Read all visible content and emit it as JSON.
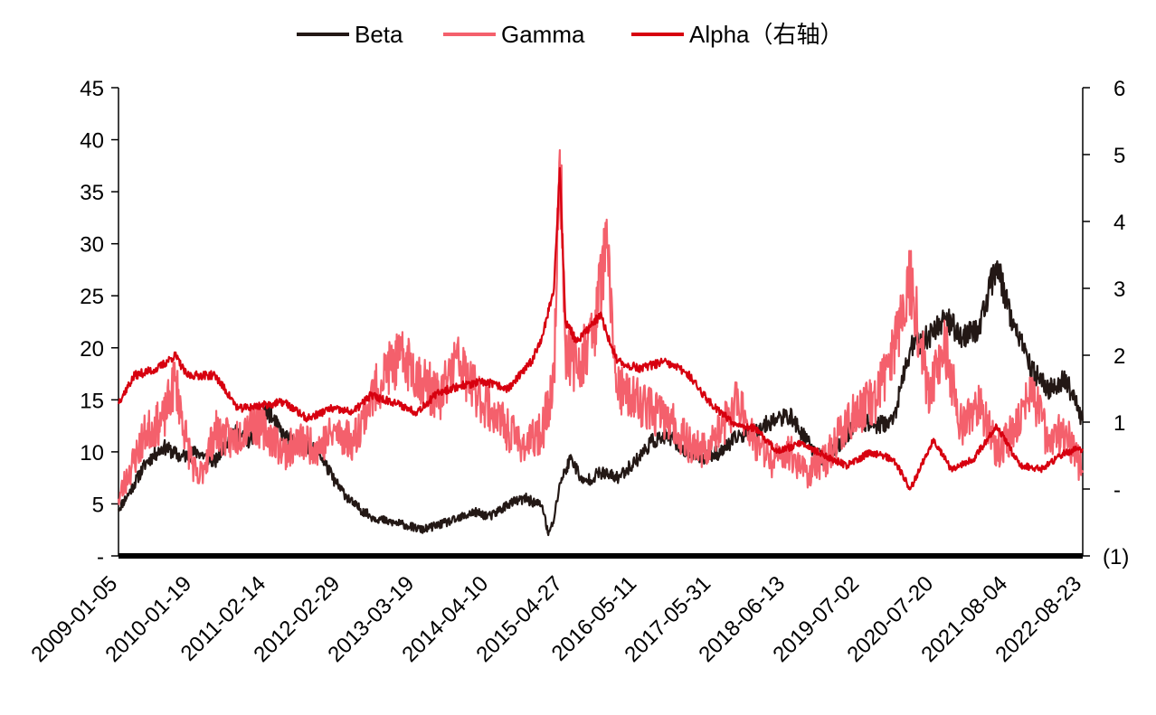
{
  "chart_data": {
    "type": "line",
    "legend": {
      "placement": "top-center",
      "entries": [
        "Beta",
        "Gamma",
        "Alpha（右轴）"
      ]
    },
    "left_axis": {
      "range": [
        0,
        45
      ],
      "ticks": [
        0,
        5,
        10,
        15,
        20,
        25,
        30,
        35,
        40,
        45
      ],
      "tick_labels": [
        "-",
        "5",
        "10",
        "15",
        "20",
        "25",
        "30",
        "35",
        "40",
        "45"
      ]
    },
    "right_axis": {
      "range": [
        -1,
        6
      ],
      "ticks": [
        -1,
        0,
        1,
        2,
        3,
        4,
        5,
        6
      ],
      "tick_labels": [
        "(1)",
        "-",
        "1",
        "2",
        "3",
        "4",
        "5",
        "6"
      ]
    },
    "x_tick_labels": [
      "2009-01-05",
      "2010-01-19",
      "2011-02-14",
      "2012-02-29",
      "2013-03-19",
      "2014-04-10",
      "2015-04-27",
      "2016-05-11",
      "2017-05-31",
      "2018-06-13",
      "2019-07-02",
      "2020-07-20",
      "2021-08-04",
      "2022-08-23"
    ],
    "x_range": [
      "2009-01-05",
      "2022-12-31"
    ],
    "grid": false,
    "series": [
      {
        "name": "Beta",
        "axis": "left",
        "color": "#231815",
        "points": [
          [
            "2009-01-05",
            4.5
          ],
          [
            "2009-03-01",
            6
          ],
          [
            "2009-06-01",
            9
          ],
          [
            "2009-09-01",
            10.5
          ],
          [
            "2009-12-01",
            9.5
          ],
          [
            "2010-03-01",
            10
          ],
          [
            "2010-06-01",
            9
          ],
          [
            "2010-09-01",
            12
          ],
          [
            "2010-12-01",
            11
          ],
          [
            "2011-03-01",
            14
          ],
          [
            "2011-06-01",
            11.5
          ],
          [
            "2011-09-01",
            10.5
          ],
          [
            "2011-12-01",
            10
          ],
          [
            "2012-03-01",
            7
          ],
          [
            "2012-06-01",
            5
          ],
          [
            "2012-09-01",
            3.8
          ],
          [
            "2012-12-01",
            3.3
          ],
          [
            "2013-03-01",
            3
          ],
          [
            "2013-06-01",
            2.5
          ],
          [
            "2013-09-01",
            3
          ],
          [
            "2013-12-01",
            3.5
          ],
          [
            "2014-03-01",
            4.2
          ],
          [
            "2014-06-01",
            3.8
          ],
          [
            "2014-09-01",
            5
          ],
          [
            "2014-12-01",
            5.5
          ],
          [
            "2015-03-01",
            4.8
          ],
          [
            "2015-04-01",
            2
          ],
          [
            "2015-05-01",
            3.5
          ],
          [
            "2015-06-01",
            7
          ],
          [
            "2015-08-01",
            9.5
          ],
          [
            "2015-10-01",
            7
          ],
          [
            "2016-01-01",
            8
          ],
          [
            "2016-04-01",
            7.5
          ],
          [
            "2016-07-01",
            9
          ],
          [
            "2016-10-01",
            11
          ],
          [
            "2017-01-01",
            11.5
          ],
          [
            "2017-04-01",
            10
          ],
          [
            "2017-07-01",
            9.5
          ],
          [
            "2017-10-01",
            10
          ],
          [
            "2018-01-01",
            11.5
          ],
          [
            "2018-04-01",
            12
          ],
          [
            "2018-07-01",
            13
          ],
          [
            "2018-10-01",
            13.5
          ],
          [
            "2019-01-01",
            11
          ],
          [
            "2019-04-01",
            9
          ],
          [
            "2019-07-01",
            11
          ],
          [
            "2019-10-01",
            13
          ],
          [
            "2020-01-01",
            12.5
          ],
          [
            "2020-04-01",
            13
          ],
          [
            "2020-07-01",
            20
          ],
          [
            "2020-10-01",
            21
          ],
          [
            "2021-01-01",
            23
          ],
          [
            "2021-04-01",
            21
          ],
          [
            "2021-07-01",
            22
          ],
          [
            "2021-10-01",
            28
          ],
          [
            "2022-01-01",
            22
          ],
          [
            "2022-04-01",
            18
          ],
          [
            "2022-07-01",
            16
          ],
          [
            "2022-10-01",
            17
          ],
          [
            "2022-12-31",
            13
          ]
        ]
      },
      {
        "name": "Gamma",
        "axis": "left",
        "color": "#F4606C",
        "points": [
          [
            "2009-01-05",
            5.5
          ],
          [
            "2009-03-01",
            8
          ],
          [
            "2009-06-01",
            12
          ],
          [
            "2009-09-01",
            13
          ],
          [
            "2009-11-01",
            17
          ],
          [
            "2010-01-01",
            11
          ],
          [
            "2010-03-01",
            7
          ],
          [
            "2010-06-01",
            12
          ],
          [
            "2010-09-01",
            11
          ],
          [
            "2010-12-01",
            13
          ],
          [
            "2011-03-01",
            12
          ],
          [
            "2011-06-01",
            10
          ],
          [
            "2011-09-01",
            11
          ],
          [
            "2011-12-01",
            10.5
          ],
          [
            "2012-03-01",
            12
          ],
          [
            "2012-06-01",
            11
          ],
          [
            "2012-09-01",
            15
          ],
          [
            "2012-12-01",
            18
          ],
          [
            "2013-03-01",
            19
          ],
          [
            "2013-06-01",
            17
          ],
          [
            "2013-09-01",
            15
          ],
          [
            "2013-12-01",
            19
          ],
          [
            "2014-03-01",
            16
          ],
          [
            "2014-06-01",
            14
          ],
          [
            "2014-09-01",
            12
          ],
          [
            "2014-12-01",
            10.5
          ],
          [
            "2015-03-01",
            12
          ],
          [
            "2015-05-01",
            17
          ],
          [
            "2015-06-01",
            39
          ],
          [
            "2015-07-01",
            20
          ],
          [
            "2015-09-01",
            18
          ],
          [
            "2015-12-01",
            22
          ],
          [
            "2016-02-01",
            30
          ],
          [
            "2016-04-01",
            16
          ],
          [
            "2016-07-01",
            15
          ],
          [
            "2016-10-01",
            14
          ],
          [
            "2017-01-01",
            13
          ],
          [
            "2017-04-01",
            11
          ],
          [
            "2017-07-01",
            10
          ],
          [
            "2017-10-01",
            12
          ],
          [
            "2018-01-01",
            15
          ],
          [
            "2018-04-01",
            11
          ],
          [
            "2018-07-01",
            9
          ],
          [
            "2018-10-01",
            10
          ],
          [
            "2019-01-01",
            8
          ],
          [
            "2019-04-01",
            9
          ],
          [
            "2019-07-01",
            12
          ],
          [
            "2019-10-01",
            14
          ],
          [
            "2020-01-01",
            15
          ],
          [
            "2020-04-01",
            20
          ],
          [
            "2020-07-01",
            27
          ],
          [
            "2020-10-01",
            16
          ],
          [
            "2021-01-01",
            20
          ],
          [
            "2021-04-01",
            12
          ],
          [
            "2021-07-01",
            15
          ],
          [
            "2021-10-01",
            10
          ],
          [
            "2022-01-01",
            12
          ],
          [
            "2022-04-01",
            16
          ],
          [
            "2022-07-01",
            11
          ],
          [
            "2022-10-01",
            12
          ],
          [
            "2022-12-31",
            8
          ]
        ]
      },
      {
        "name": "Alpha（右轴）",
        "axis": "right",
        "color": "#D7000F",
        "points": [
          [
            "2009-01-05",
            1.3
          ],
          [
            "2009-04-01",
            1.7
          ],
          [
            "2009-08-01",
            1.8
          ],
          [
            "2009-11-01",
            2.0
          ],
          [
            "2010-01-01",
            1.7
          ],
          [
            "2010-06-01",
            1.7
          ],
          [
            "2010-10-01",
            1.2
          ],
          [
            "2011-02-01",
            1.25
          ],
          [
            "2011-06-01",
            1.3
          ],
          [
            "2011-10-01",
            1.05
          ],
          [
            "2012-02-01",
            1.2
          ],
          [
            "2012-06-01",
            1.15
          ],
          [
            "2012-09-01",
            1.4
          ],
          [
            "2013-01-01",
            1.3
          ],
          [
            "2013-05-01",
            1.15
          ],
          [
            "2013-09-01",
            1.45
          ],
          [
            "2014-01-01",
            1.55
          ],
          [
            "2014-05-01",
            1.6
          ],
          [
            "2014-09-01",
            1.5
          ],
          [
            "2015-01-01",
            1.9
          ],
          [
            "2015-03-01",
            2.3
          ],
          [
            "2015-05-01",
            3.0
          ],
          [
            "2015-06-01",
            4.8
          ],
          [
            "2015-07-01",
            2.5
          ],
          [
            "2015-09-01",
            2.2
          ],
          [
            "2016-01-01",
            2.6
          ],
          [
            "2016-04-01",
            1.9
          ],
          [
            "2016-08-01",
            1.8
          ],
          [
            "2016-12-01",
            1.9
          ],
          [
            "2017-04-01",
            1.75
          ],
          [
            "2017-08-01",
            1.3
          ],
          [
            "2017-12-01",
            1.0
          ],
          [
            "2018-04-01",
            0.9
          ],
          [
            "2018-08-01",
            0.55
          ],
          [
            "2018-12-01",
            0.7
          ],
          [
            "2019-04-01",
            0.5
          ],
          [
            "2019-08-01",
            0.35
          ],
          [
            "2019-12-01",
            0.55
          ],
          [
            "2020-04-01",
            0.45
          ],
          [
            "2020-07-01",
            0.0
          ],
          [
            "2020-11-01",
            0.75
          ],
          [
            "2021-02-01",
            0.3
          ],
          [
            "2021-06-01",
            0.45
          ],
          [
            "2021-10-01",
            0.95
          ],
          [
            "2022-02-01",
            0.35
          ],
          [
            "2022-06-01",
            0.3
          ],
          [
            "2022-10-01",
            0.55
          ],
          [
            "2022-12-31",
            0.6
          ]
        ]
      }
    ]
  }
}
